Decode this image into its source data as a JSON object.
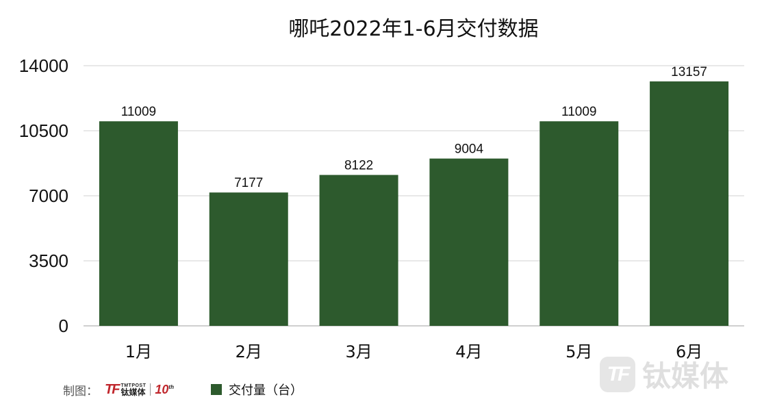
{
  "chart_data": {
    "type": "bar",
    "title": "哪吒2022年1-6月交付数据",
    "categories": [
      "1月",
      "2月",
      "3月",
      "4月",
      "5月",
      "6月"
    ],
    "series": [
      {
        "name": "交付量（台）",
        "values": [
          11009,
          7177,
          8122,
          9004,
          11009,
          13157
        ],
        "color": "#2d5a2d"
      }
    ],
    "ylim": [
      0,
      14000
    ],
    "yticks": [
      0,
      3500,
      7000,
      10500,
      14000
    ],
    "grid": true,
    "legend_position": "bottom"
  },
  "footer": {
    "credit_label": "制图：",
    "logo_mark": "TF",
    "logo_en": "TMTPOST",
    "logo_cn": "钛媒体",
    "anniversary": "10",
    "anniversary_sup": "th"
  },
  "watermark": {
    "mark": "TF",
    "text": "钛媒体"
  },
  "colors": {
    "bar": "#2d5a2d",
    "brand_red": "#c0262c"
  }
}
